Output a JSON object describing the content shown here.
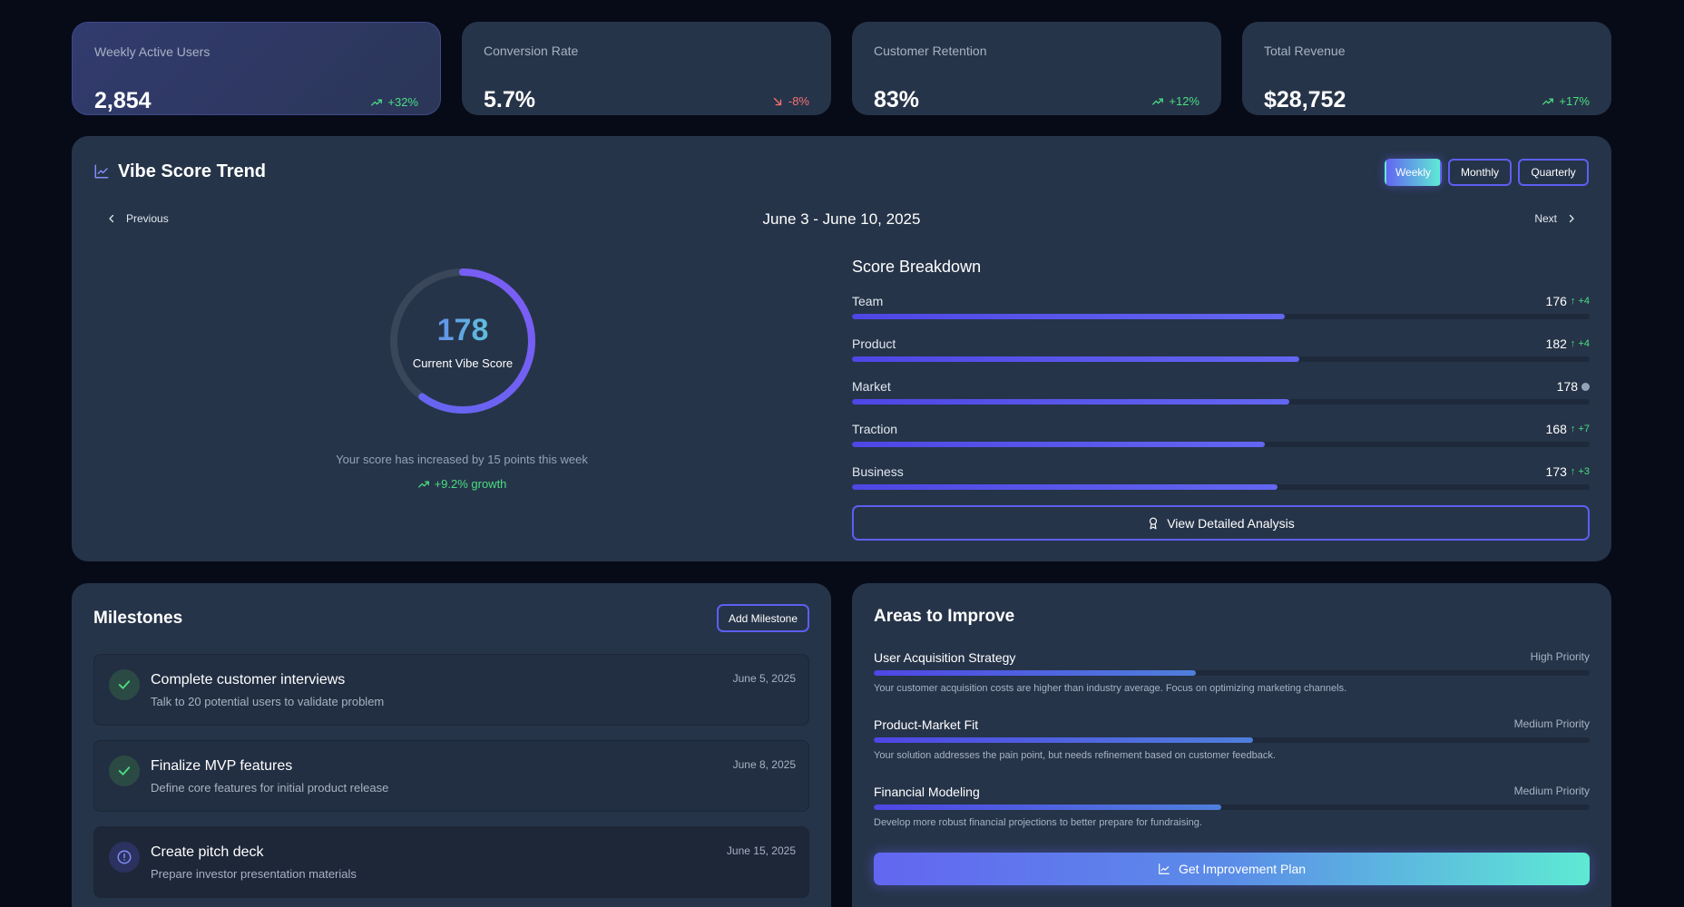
{
  "kpis": [
    {
      "label": "Weekly Active Users",
      "value": "2,854",
      "change": "+32%",
      "trend": "up"
    },
    {
      "label": "Conversion Rate",
      "value": "5.7%",
      "change": "-8%",
      "trend": "down"
    },
    {
      "label": "Customer Retention",
      "value": "83%",
      "change": "+12%",
      "trend": "up"
    },
    {
      "label": "Total Revenue",
      "value": "$28,752",
      "change": "+17%",
      "trend": "up"
    }
  ],
  "trend": {
    "title": "Vibe Score Trend",
    "ranges": [
      "Weekly",
      "Monthly",
      "Quarterly"
    ],
    "selected_range": "Weekly",
    "previous_label": "Previous",
    "next_label": "Next",
    "date_range": "June 3 - June 10, 2025",
    "score": "178",
    "score_label": "Current Vibe Score",
    "gauge_fraction": 0.6,
    "note": "Your score has increased by 15 points this week",
    "growth": "+9.2% growth",
    "breakdown_title": "Score Breakdown",
    "breakdown": [
      {
        "label": "Team",
        "score": "176",
        "delta": "+4",
        "fraction": 0.587
      },
      {
        "label": "Product",
        "score": "182",
        "delta": "+4",
        "fraction": 0.607
      },
      {
        "label": "Market",
        "score": "178",
        "delta": "",
        "fraction": 0.593
      },
      {
        "label": "Traction",
        "score": "168",
        "delta": "+7",
        "fraction": 0.56
      },
      {
        "label": "Business",
        "score": "173",
        "delta": "+3",
        "fraction": 0.577
      }
    ],
    "detail_button": "View Detailed Analysis"
  },
  "milestones": {
    "title": "Milestones",
    "add_button": "Add Milestone",
    "items": [
      {
        "title": "Complete customer interviews",
        "desc": "Talk to 20 potential users to validate problem",
        "date": "June 5, 2025",
        "status": "done"
      },
      {
        "title": "Finalize MVP features",
        "desc": "Define core features for initial product release",
        "date": "June 8, 2025",
        "status": "done"
      },
      {
        "title": "Create pitch deck",
        "desc": "Prepare investor presentation materials",
        "date": "June 15, 2025",
        "status": "pending"
      }
    ]
  },
  "improve": {
    "title": "Areas to Improve",
    "items": [
      {
        "name": "User Acquisition Strategy",
        "priority": "High Priority",
        "desc": "Your customer acquisition costs are higher than industry average. Focus on optimizing marketing channels.",
        "fraction": 0.45
      },
      {
        "name": "Product-Market Fit",
        "priority": "Medium Priority",
        "desc": "Your solution addresses the pain point, but needs refinement based on customer feedback.",
        "fraction": 0.53
      },
      {
        "name": "Financial Modeling",
        "priority": "Medium Priority",
        "desc": "Develop more robust financial projections to better prepare for fundraising.",
        "fraction": 0.485
      }
    ],
    "plan_button": "Get Improvement Plan"
  }
}
